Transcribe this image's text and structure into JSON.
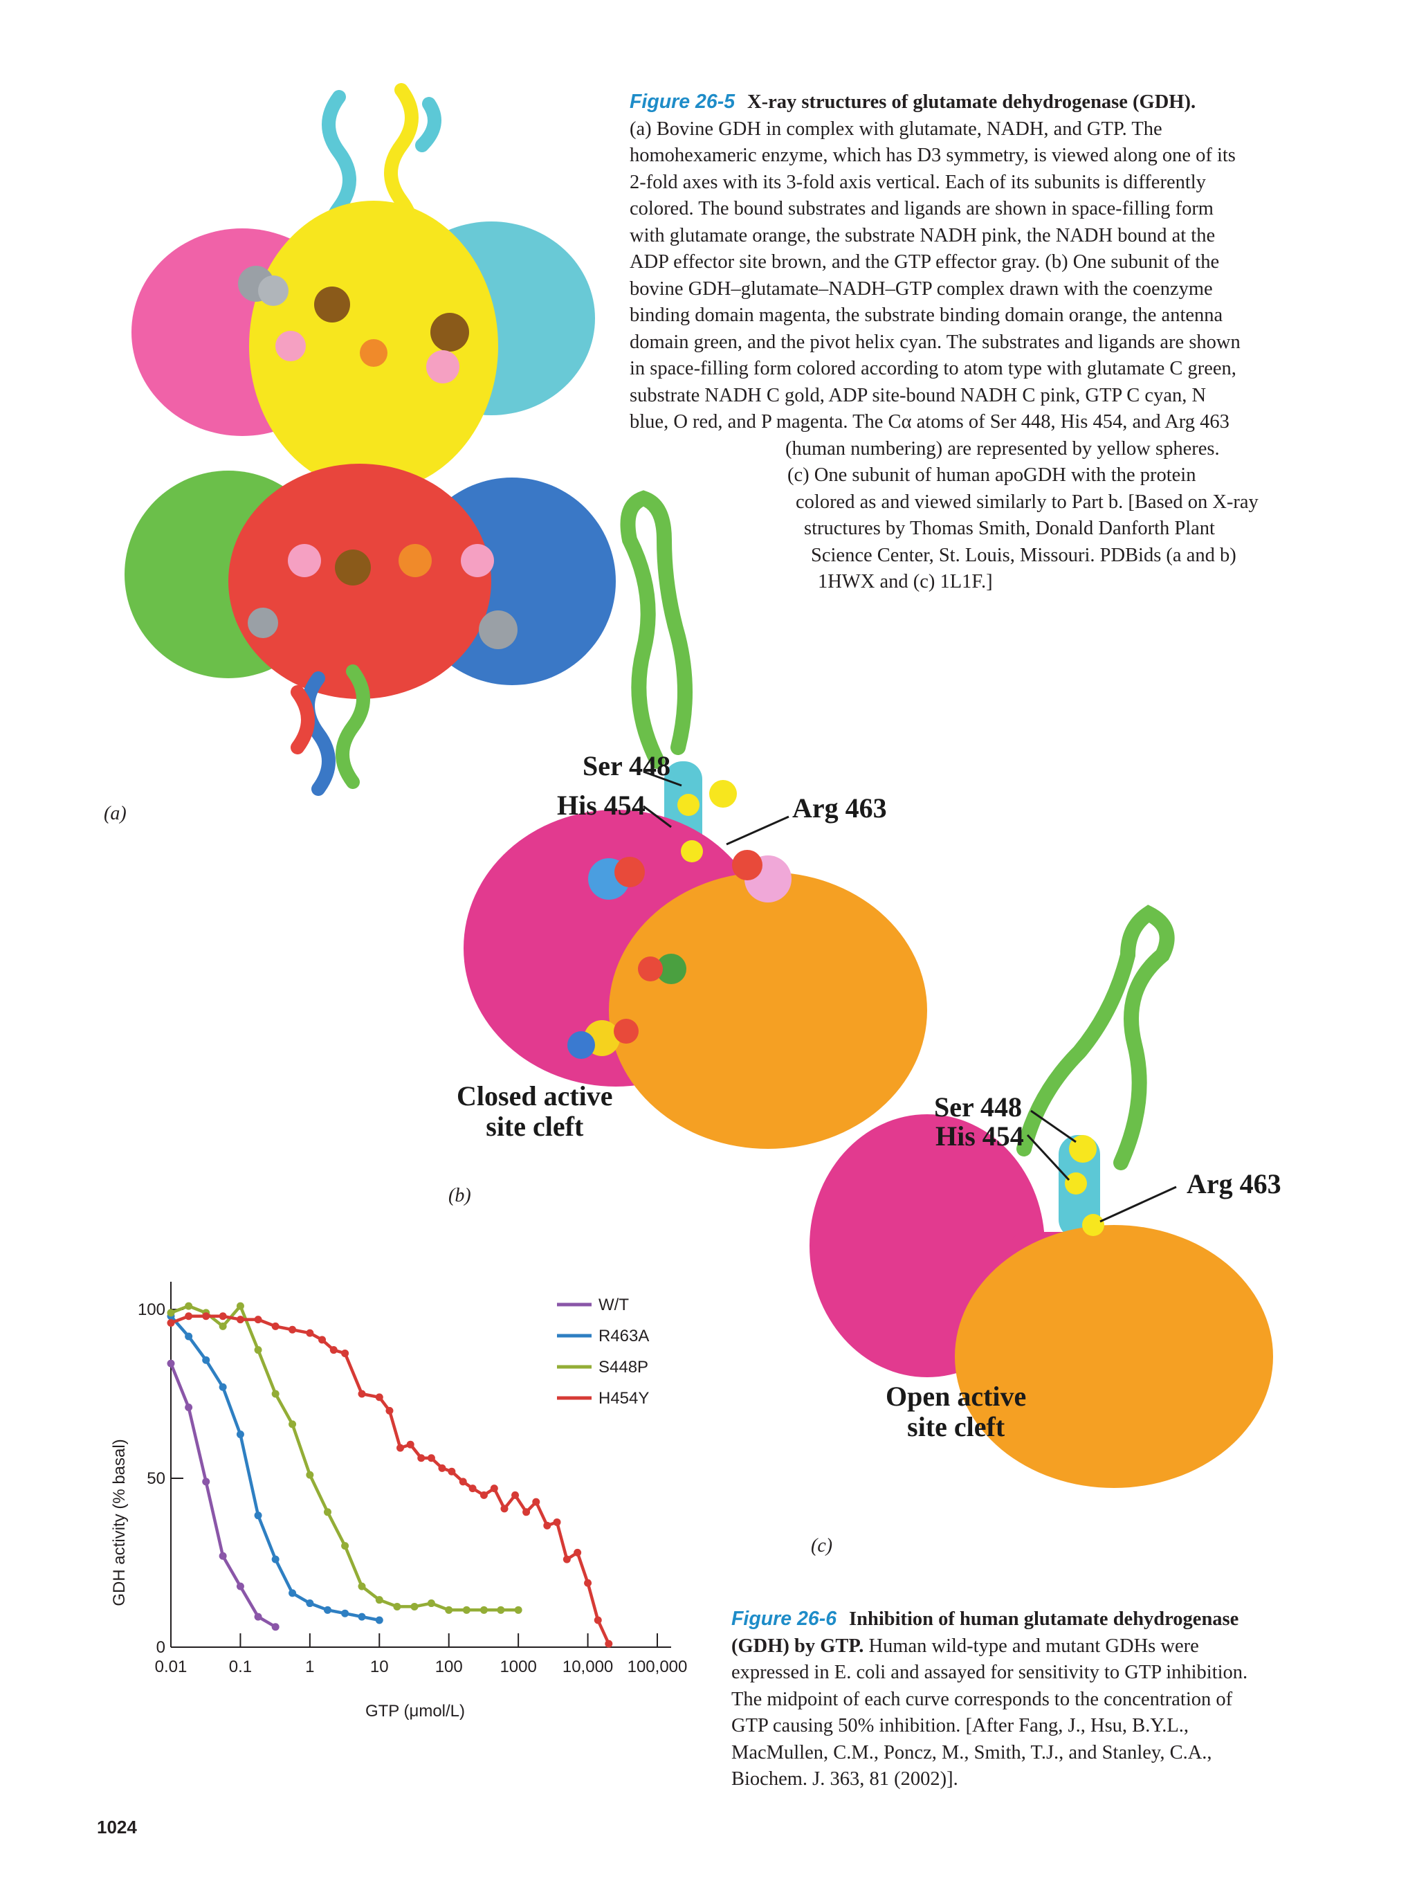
{
  "fig265": {
    "number": "Figure 26-5",
    "title": "X-ray structures of glutamate dehydrogenase (GDH).",
    "lines": [
      "(a) Bovine GDH in complex with glutamate, NADH, and GTP. The",
      "homohexameric enzyme, which has D3 symmetry, is viewed along one of its",
      "2-fold axes with its 3-fold axis vertical. Each of its subunits is differently",
      "colored. The bound substrates and ligands are shown in space-filling form",
      "with glutamate orange, the substrate NADH pink, the NADH bound at the",
      "ADP effector site brown, and the GTP effector gray. (b) One subunit of the",
      "bovine GDH–glutamate–NADH–GTP complex drawn with the coenzyme",
      "binding domain magenta, the substrate binding domain orange, the antenna",
      "domain green, and the pivot helix cyan. The substrates and ligands are shown",
      "in space-filling form colored according to atom type with glutamate C green,",
      "substrate NADH C gold, ADP site-bound NADH C pink, GTP C cyan, N",
      "blue, O red, and P magenta. The Cα atoms of Ser 448, His 454, and Arg 463",
      "(human numbering) are represented by yellow spheres.",
      "(c) One subunit of human apoGDH with the protein",
      "colored as and viewed similarly to Part b. [Based on X-ray",
      "structures by Thomas Smith, Donald Danforth Plant",
      "Science Center, St. Louis, Missouri. PDBids (a and b)",
      "1HWX and (c) 1L1F.]"
    ]
  },
  "panels": {
    "a": "(a)",
    "b": "(b)",
    "c": "(c)"
  },
  "labels_b": {
    "ser": "Ser 448",
    "his": "His 454",
    "arg": "Arg 463",
    "cleft1": "Closed active",
    "cleft2": "site cleft"
  },
  "labels_c": {
    "ser": "Ser 448",
    "his": "His 454",
    "arg": "Arg 463",
    "cleft1": "Open active",
    "cleft2": "site cleft"
  },
  "fig266": {
    "number": "Figure 26-6",
    "title1": "Inhibition of human glutamate dehydrogenase",
    "title2": "(GDH) by GTP.",
    "lines": [
      " Human wild-type and mutant GDHs were",
      "expressed in E. coli and assayed for sensitivity to GTP inhibition.",
      "The midpoint of each curve corresponds to the concentration of",
      "GTP causing 50% inhibition. [After Fang, J., Hsu, B.Y.L.,",
      "MacMullen, C.M., Poncz, M., Smith, T.J., and Stanley, C.A.,",
      "Biochem. J. 363, 81 (2002)]."
    ]
  },
  "page_number": "1024",
  "colors": {
    "wt": "#8a56a8",
    "r463a": "#2e7fc2",
    "s448p": "#93ad36",
    "h454y": "#d63a35",
    "accent": "#1e8cc8"
  },
  "chart_data": {
    "type": "line",
    "xscale": "log",
    "xlabel": "GTP (μmol/L)",
    "ylabel": "GDH activity (% basal)",
    "xlim": [
      0.01,
      100000
    ],
    "ylim": [
      0,
      100
    ],
    "xticks": [
      "0.01",
      "0.1",
      "1",
      "10",
      "100",
      "1000",
      "10,000",
      "100,000"
    ],
    "yticks": [
      "0",
      "50",
      "100"
    ],
    "legend_position": "top-right",
    "series": [
      {
        "name": "W/T",
        "color": "#8a56a8",
        "x": [
          0.01,
          0.018,
          0.032,
          0.056,
          0.1,
          0.18,
          0.32
        ],
        "y": [
          84,
          71,
          49,
          27,
          18,
          9,
          6
        ]
      },
      {
        "name": "R463A",
        "color": "#2e7fc2",
        "x": [
          0.01,
          0.018,
          0.032,
          0.056,
          0.1,
          0.18,
          0.32,
          0.56,
          1.0,
          1.8,
          3.2,
          5.6,
          10
        ],
        "y": [
          98,
          92,
          85,
          77,
          63,
          39,
          26,
          16,
          13,
          11,
          10,
          9,
          8
        ]
      },
      {
        "name": "S448P",
        "color": "#93ad36",
        "x": [
          0.01,
          0.018,
          0.032,
          0.056,
          0.1,
          0.18,
          0.32,
          0.56,
          1.0,
          1.8,
          3.2,
          5.6,
          10,
          18,
          32,
          56,
          100,
          180,
          320,
          560,
          1000
        ],
        "y": [
          99,
          101,
          99,
          95,
          101,
          88,
          75,
          66,
          51,
          40,
          30,
          18,
          14,
          12,
          12,
          13,
          11,
          11,
          11,
          11,
          11
        ]
      },
      {
        "name": "H454Y",
        "color": "#d63a35",
        "x": [
          0.01,
          0.018,
          0.032,
          0.056,
          0.1,
          0.18,
          0.32,
          0.56,
          1.0,
          1.5,
          2.2,
          3.2,
          5.6,
          10,
          14,
          20,
          28,
          40,
          56,
          80,
          110,
          160,
          220,
          320,
          450,
          630,
          900,
          1300,
          1800,
          2600,
          3600,
          5000,
          7100,
          10000,
          14000,
          20000
        ],
        "y": [
          96,
          98,
          98,
          98,
          97,
          97,
          95,
          94,
          93,
          91,
          88,
          87,
          75,
          74,
          70,
          59,
          60,
          56,
          56,
          53,
          52,
          49,
          47,
          45,
          47,
          41,
          45,
          40,
          43,
          36,
          37,
          26,
          28,
          19,
          8,
          1
        ]
      }
    ]
  }
}
